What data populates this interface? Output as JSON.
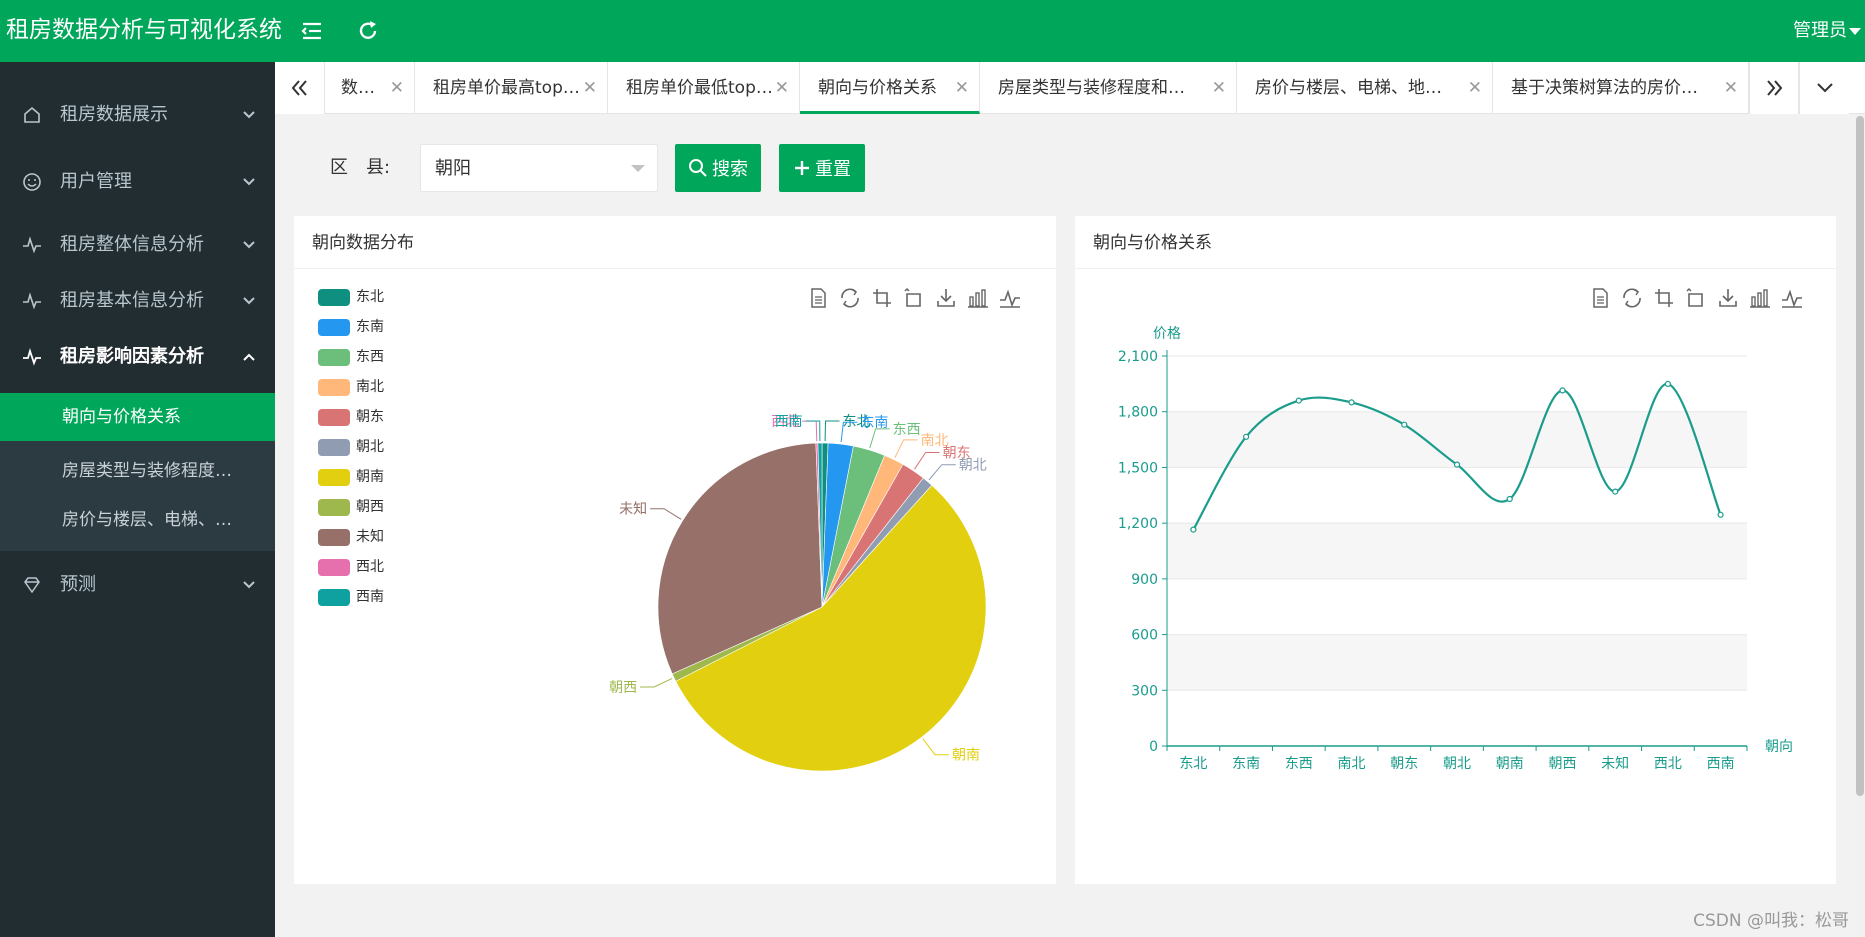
{
  "app": {
    "title": "租房数据分析与可视化系统",
    "user": "管理员"
  },
  "header": {
    "menu_icon": "menu-fold-icon",
    "refresh_icon": "refresh-icon"
  },
  "sidebar": {
    "items": [
      {
        "label": "租房数据展示",
        "icon": "home-icon"
      },
      {
        "label": "用户管理",
        "icon": "smile-icon"
      },
      {
        "label": "租房整体信息分析",
        "icon": "pulse-icon"
      },
      {
        "label": "租房基本信息分析",
        "icon": "pulse-icon"
      },
      {
        "label": "租房影响因素分析",
        "icon": "pulse-icon"
      },
      {
        "label": "预测",
        "icon": "diamond-icon"
      }
    ],
    "submenu": [
      {
        "label": "朝向与价格关系"
      },
      {
        "label": "房屋类型与装修程度…"
      },
      {
        "label": "房价与楼层、电梯、…"
      }
    ]
  },
  "tabs": [
    {
      "label": "数…"
    },
    {
      "label": "租房单价最高top20"
    },
    {
      "label": "租房单价最低top20"
    },
    {
      "label": "朝向与价格关系"
    },
    {
      "label": "房屋类型与装修程度和…"
    },
    {
      "label": "房价与楼层、电梯、地…"
    },
    {
      "label": "基于决策树算法的房价…"
    }
  ],
  "search": {
    "label": "区　县:",
    "value": "朝阳",
    "search_button": "搜索",
    "reset_button": "重置"
  },
  "cards": {
    "pie_title": "朝向数据分布",
    "line_title": "朝向与价格关系"
  },
  "watermark": "CSDN @叫我：松哥",
  "colors": {
    "brand": "#00a65a",
    "sidebar": "#222d32",
    "line": "#1a9c8c"
  },
  "chart_data": [
    {
      "type": "pie",
      "title": "朝向数据分布",
      "categories": [
        "东北",
        "东南",
        "东西",
        "南北",
        "朝东",
        "朝北",
        "朝南",
        "朝西",
        "未知",
        "西北",
        "西南"
      ],
      "values": [
        0.6,
        2.5,
        3.2,
        2.0,
        2.4,
        1.1,
        56.4,
        0.8,
        31.4,
        0.2,
        0.4
      ],
      "colors": [
        "#0f8f7f",
        "#2497f0",
        "#6bbf7a",
        "#ffb77a",
        "#d97474",
        "#8f9cb2",
        "#e2cf0f",
        "#9fb84e",
        "#967069",
        "#e66fad",
        "#0fa0a0"
      ],
      "legend": "left"
    },
    {
      "type": "line",
      "title": "朝向与价格关系",
      "x": [
        "东北",
        "东南",
        "东西",
        "南北",
        "朝东",
        "朝北",
        "朝南",
        "朝西",
        "未知",
        "西北",
        "西南"
      ],
      "y": [
        1165,
        1665,
        1860,
        1850,
        1730,
        1515,
        1330,
        1915,
        1370,
        1950,
        1245
      ],
      "xlabel": "朝向",
      "ylabel": "价格",
      "ylim": [
        0,
        2100
      ],
      "yticks": [
        0,
        300,
        600,
        900,
        1200,
        1500,
        1800,
        2100
      ],
      "ytick_labels": [
        "0",
        "300",
        "600",
        "900",
        "1,200",
        "1,500",
        "1,800",
        "2,100"
      ],
      "smooth": true,
      "grid": true
    }
  ]
}
